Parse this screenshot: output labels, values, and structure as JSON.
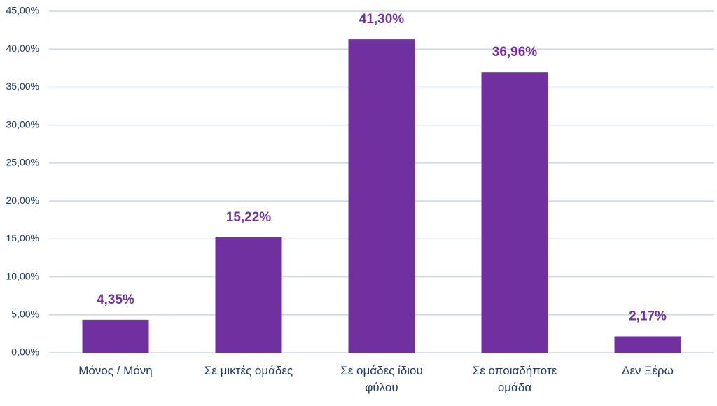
{
  "chart_data": {
    "type": "bar",
    "categories": [
      "Μόνος / Μόνη",
      "Σε μικτές ομάδες",
      "Σε ομάδες ίδιου φύλου",
      "Σε οποιαδήποτε ομάδα",
      "Δεν Ξέρω"
    ],
    "values": [
      4.35,
      15.22,
      41.3,
      36.96,
      2.17
    ],
    "value_labels": [
      "4,35%",
      "15,22%",
      "41,30%",
      "36,96%",
      "2,17%"
    ],
    "color": "#7030a0",
    "ylim": [
      0,
      45
    ],
    "yticks": [
      {
        "value": 0,
        "label": "0,00%"
      },
      {
        "value": 5,
        "label": "5,00%"
      },
      {
        "value": 10,
        "label": "10,00%"
      },
      {
        "value": 15,
        "label": "15,00%"
      },
      {
        "value": 20,
        "label": "20,00%"
      },
      {
        "value": 25,
        "label": "25,00%"
      },
      {
        "value": 30,
        "label": "30,00%"
      },
      {
        "value": 35,
        "label": "35,00%"
      },
      {
        "value": 40,
        "label": "40,00%"
      },
      {
        "value": 45,
        "label": "45,00%"
      }
    ],
    "grid": true
  }
}
